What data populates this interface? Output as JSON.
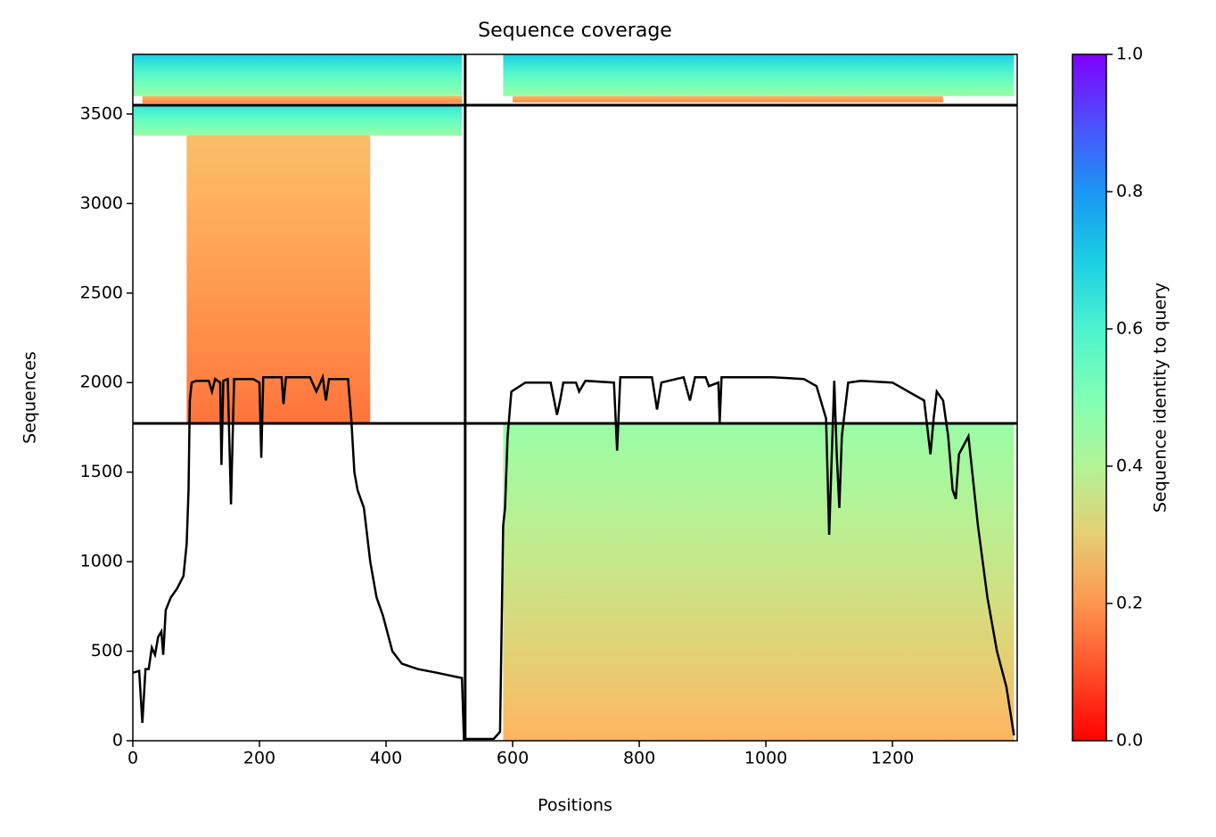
{
  "chart_data": {
    "type": "coverage",
    "title": "Sequence coverage",
    "x_label": "Positions",
    "y_label": "Sequences",
    "xlim": [
      0,
      1397
    ],
    "xticks": [
      0,
      200,
      400,
      600,
      800,
      1000,
      1200
    ],
    "ylim": [
      0,
      3833
    ],
    "yticks": [
      0,
      500,
      1000,
      1500,
      2000,
      2500,
      3000,
      3500
    ],
    "boundaries_x": [
      525
    ],
    "boundaries_y": [
      1772,
      3549
    ],
    "blocks": [
      {
        "x": [
          85,
          375
        ],
        "y": [
          1772,
          3380
        ],
        "identity": [
          0.15,
          0.27
        ]
      },
      {
        "x": [
          0,
          520
        ],
        "y": [
          3380,
          3549
        ],
        "identity": [
          0.45,
          0.65
        ]
      },
      {
        "x": [
          15,
          520
        ],
        "y": [
          3560,
          3600
        ],
        "identity": [
          0.18,
          0.25
        ]
      },
      {
        "x": [
          0,
          520
        ],
        "y": [
          3600,
          3833
        ],
        "identity": [
          0.45,
          0.7
        ]
      },
      {
        "x": [
          600,
          1280
        ],
        "y": [
          3565,
          3600
        ],
        "identity": [
          0.18,
          0.25
        ]
      },
      {
        "x": [
          585,
          1392
        ],
        "y": [
          3600,
          3833
        ],
        "identity": [
          0.45,
          0.7
        ]
      },
      {
        "x": [
          585,
          1392
        ],
        "y": [
          0,
          1772
        ],
        "identity": [
          0.25,
          0.45
        ]
      }
    ],
    "series": [
      {
        "color": "#000000",
        "x": [
          0,
          10,
          15,
          20,
          25,
          30,
          35,
          40,
          45,
          48,
          52,
          60,
          70,
          80,
          85,
          88,
          90,
          93,
          100,
          120,
          125,
          130,
          138,
          140,
          143,
          150,
          155,
          160,
          190,
          200,
          203,
          206,
          235,
          238,
          242,
          280,
          290,
          300,
          305,
          310,
          340,
          345,
          350,
          355,
          365,
          375,
          385,
          395,
          410,
          425,
          450,
          480,
          520,
          523,
          570,
          580,
          585,
          588,
          592,
          598,
          620,
          660,
          670,
          675,
          680,
          700,
          705,
          715,
          760,
          765,
          770,
          820,
          828,
          835,
          870,
          880,
          888,
          905,
          910,
          925,
          927,
          930,
          1010,
          1060,
          1080,
          1095,
          1100,
          1105,
          1108,
          1112,
          1116,
          1120,
          1130,
          1150,
          1200,
          1250,
          1260,
          1265,
          1270,
          1280,
          1288,
          1295,
          1300,
          1305,
          1320,
          1335,
          1350,
          1365,
          1380,
          1392
        ],
        "values": [
          380,
          390,
          100,
          400,
          400,
          520,
          480,
          580,
          610,
          480,
          730,
          800,
          850,
          920,
          1100,
          1400,
          1900,
          2000,
          2010,
          2010,
          1950,
          2020,
          2000,
          1540,
          2010,
          2020,
          1320,
          2020,
          2020,
          2000,
          1580,
          2030,
          2030,
          1880,
          2030,
          2030,
          1950,
          2030,
          1900,
          2020,
          2020,
          1800,
          1500,
          1400,
          1300,
          1000,
          800,
          700,
          500,
          430,
          400,
          380,
          350,
          10,
          10,
          50,
          1200,
          1300,
          1700,
          1950,
          2000,
          2000,
          1820,
          1900,
          2000,
          2000,
          1950,
          2010,
          2000,
          1620,
          2030,
          2030,
          1850,
          2000,
          2030,
          1900,
          2030,
          2030,
          1980,
          2000,
          1780,
          2030,
          2030,
          2020,
          1980,
          1800,
          1150,
          1700,
          2010,
          1600,
          1300,
          1700,
          2000,
          2010,
          2000,
          1900,
          1600,
          1800,
          1950,
          1900,
          1700,
          1400,
          1350,
          1600,
          1700,
          1200,
          800,
          500,
          300,
          30
        ]
      }
    ],
    "colorbar": {
      "label": "Sequence identity to query",
      "colormap": "rainbow_r",
      "lim": [
        0,
        1
      ],
      "ticks": [
        {
          "value": 0,
          "label": "0.0"
        },
        {
          "value": 0.2,
          "label": "0.2"
        },
        {
          "value": 0.4,
          "label": "0.4"
        },
        {
          "value": 0.6,
          "label": "0.6"
        },
        {
          "value": 0.8,
          "label": "0.8"
        },
        {
          "value": 1,
          "label": "1.0"
        }
      ]
    }
  }
}
